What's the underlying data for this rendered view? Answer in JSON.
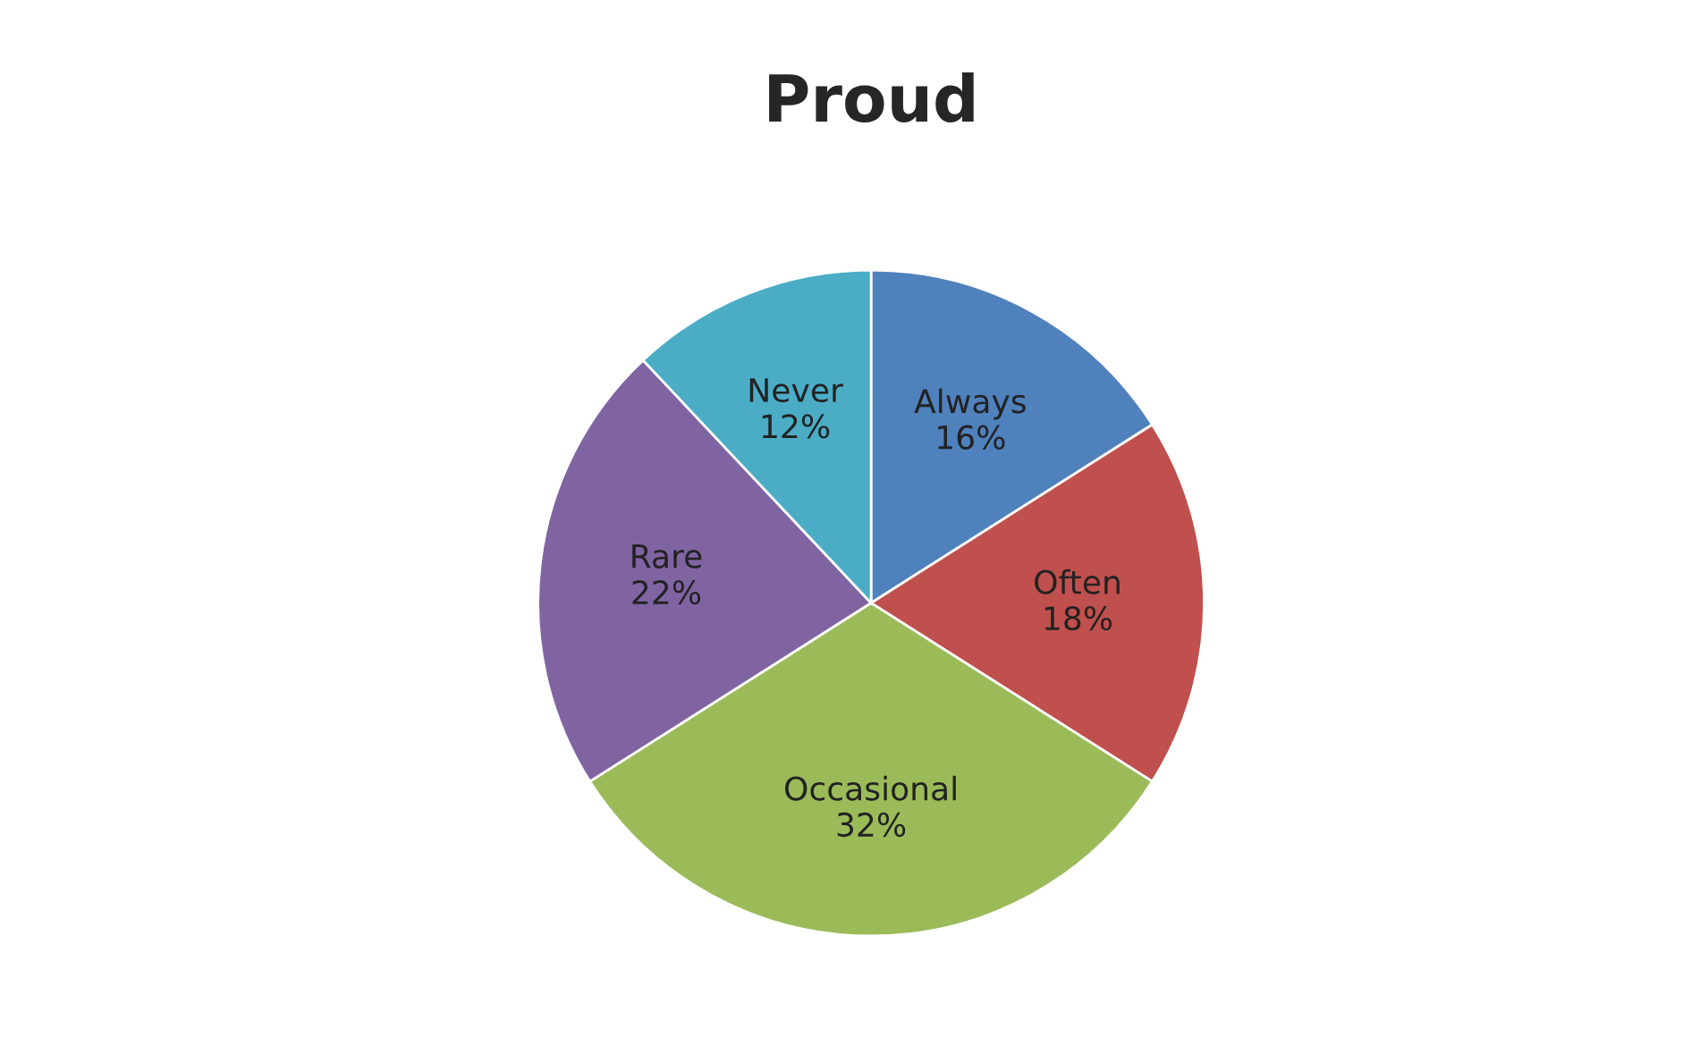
{
  "chart_data": {
    "type": "pie",
    "title": "Proud",
    "categories": [
      "Always",
      "Often",
      "Occasional",
      "Rare",
      "Never"
    ],
    "values": [
      16,
      18,
      32,
      22,
      12
    ],
    "value_labels": [
      "16%",
      "18%",
      "32%",
      "22%",
      "12%"
    ],
    "colors": [
      "#4f81bd",
      "#c0504d",
      "#9bbb59",
      "#8064a2",
      "#4bacc6"
    ],
    "legend": false
  }
}
